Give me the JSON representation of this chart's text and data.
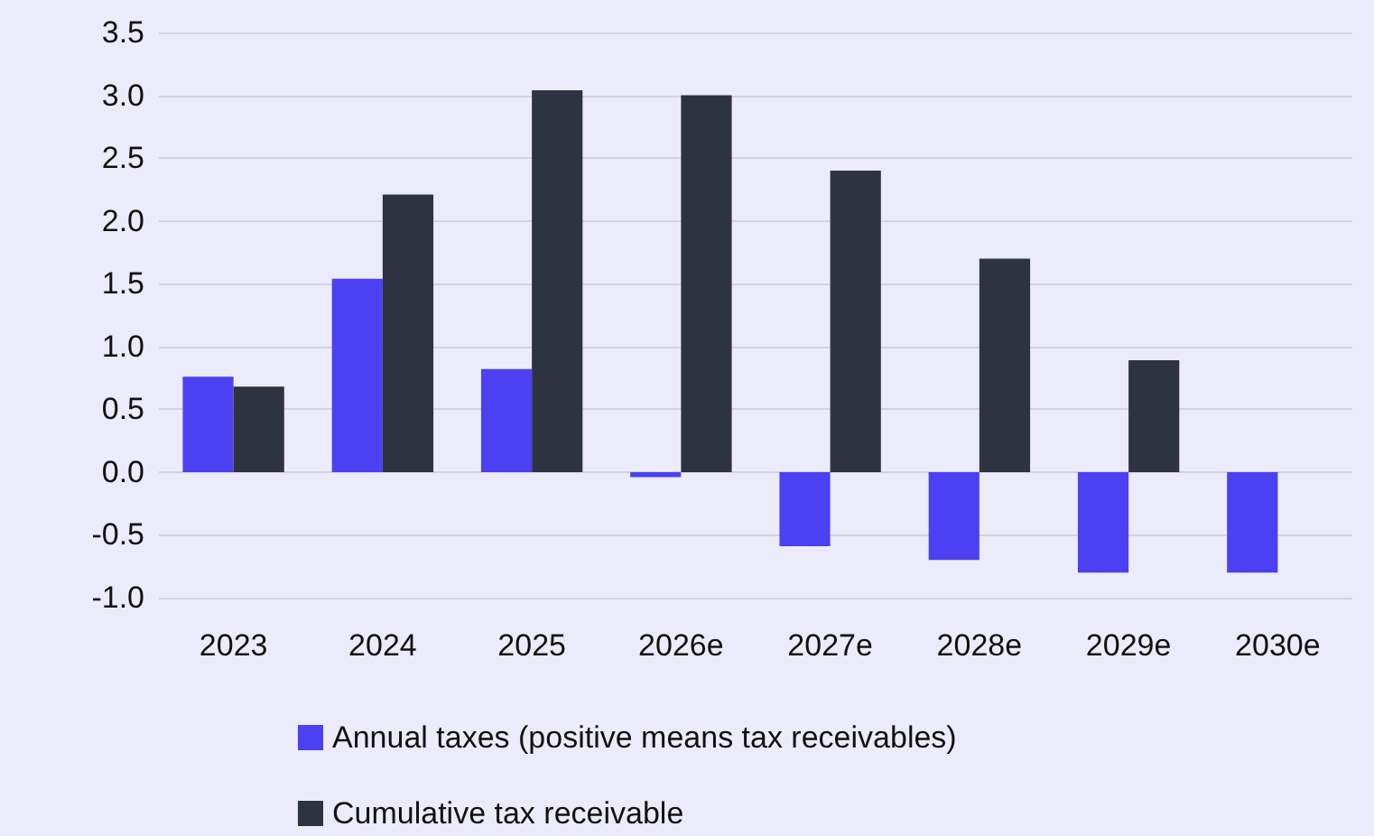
{
  "chart_data": {
    "type": "bar",
    "categories": [
      "2023",
      "2024",
      "2025",
      "2026e",
      "2027e",
      "2028e",
      "2029e",
      "2030e"
    ],
    "series": [
      {
        "name": "Annual taxes (positive means tax receivables)",
        "color": "#4b40f2",
        "values": [
          0.76,
          1.54,
          0.82,
          -0.04,
          -0.59,
          -0.7,
          -0.8,
          -0.8
        ]
      },
      {
        "name": "Cumulative tax receivable",
        "color": "#2d3341",
        "values": [
          0.68,
          2.21,
          3.04,
          3.0,
          2.4,
          1.7,
          0.89,
          null
        ]
      }
    ],
    "ylim": [
      -1.0,
      3.5
    ],
    "yticks": [
      {
        "value": -1.0,
        "label": "-1.0"
      },
      {
        "value": -0.5,
        "label": "-0.5"
      },
      {
        "value": 0,
        "label": "0.0"
      },
      {
        "value": 0.5,
        "label": "0.5"
      },
      {
        "value": 1.0,
        "label": "1.0"
      },
      {
        "value": 1.5,
        "label": "1.5"
      },
      {
        "value": 2.0,
        "label": "2.0"
      },
      {
        "value": 2.5,
        "label": "2.5"
      },
      {
        "value": 3.0,
        "label": "3.0"
      },
      {
        "value": 3.5,
        "label": "3.5"
      }
    ],
    "grid": "y",
    "legend": "bottom"
  }
}
